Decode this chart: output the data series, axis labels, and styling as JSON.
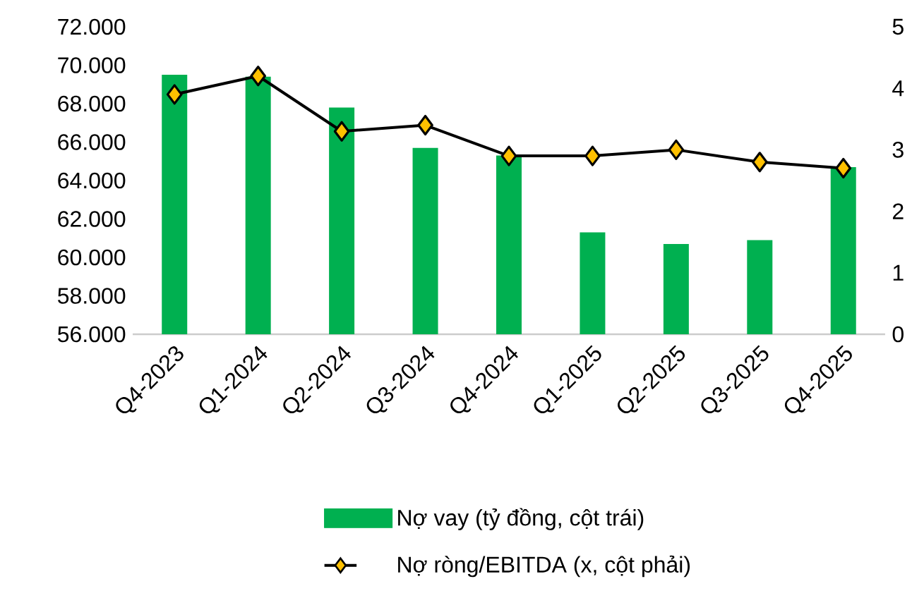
{
  "chart_data": {
    "type": "bar",
    "categories": [
      "Q4-2023",
      "Q1-2024",
      "Q2-2024",
      "Q3-2024",
      "Q4-2024",
      "Q1-2025",
      "Q2-2025",
      "Q3-2025",
      "Q4-2025"
    ],
    "series": [
      {
        "name": "Nợ vay (tỷ đồng, cột trái)",
        "color": "#00b050",
        "values": [
          69500,
          69400,
          67800,
          65700,
          65300,
          61300,
          60700,
          60900,
          64700
        ]
      },
      {
        "name": "Nợ ròng/EBITDA (x, cột phải)",
        "type": "line",
        "axis": "y2",
        "color": "#ffc000",
        "marker": "diamond",
        "values": [
          3.9,
          4.2,
          3.3,
          3.4,
          2.9,
          2.9,
          3.0,
          2.8,
          2.7
        ]
      }
    ],
    "ylim": [
      56000,
      72000
    ],
    "yticks": [
      {
        "value": 56000,
        "label": "56.000"
      },
      {
        "value": 58000,
        "label": "58.000"
      },
      {
        "value": 60000,
        "label": "60.000"
      },
      {
        "value": 62000,
        "label": "62.000"
      },
      {
        "value": 64000,
        "label": "64.000"
      },
      {
        "value": 66000,
        "label": "66.000"
      },
      {
        "value": 68000,
        "label": "68.000"
      },
      {
        "value": 70000,
        "label": "70.000"
      },
      {
        "value": 72000,
        "label": "72.000"
      }
    ],
    "y2lim": [
      0,
      5
    ],
    "y2ticks": [
      0,
      1,
      2,
      3,
      4,
      5
    ],
    "legend": "bottom",
    "grid": false
  }
}
